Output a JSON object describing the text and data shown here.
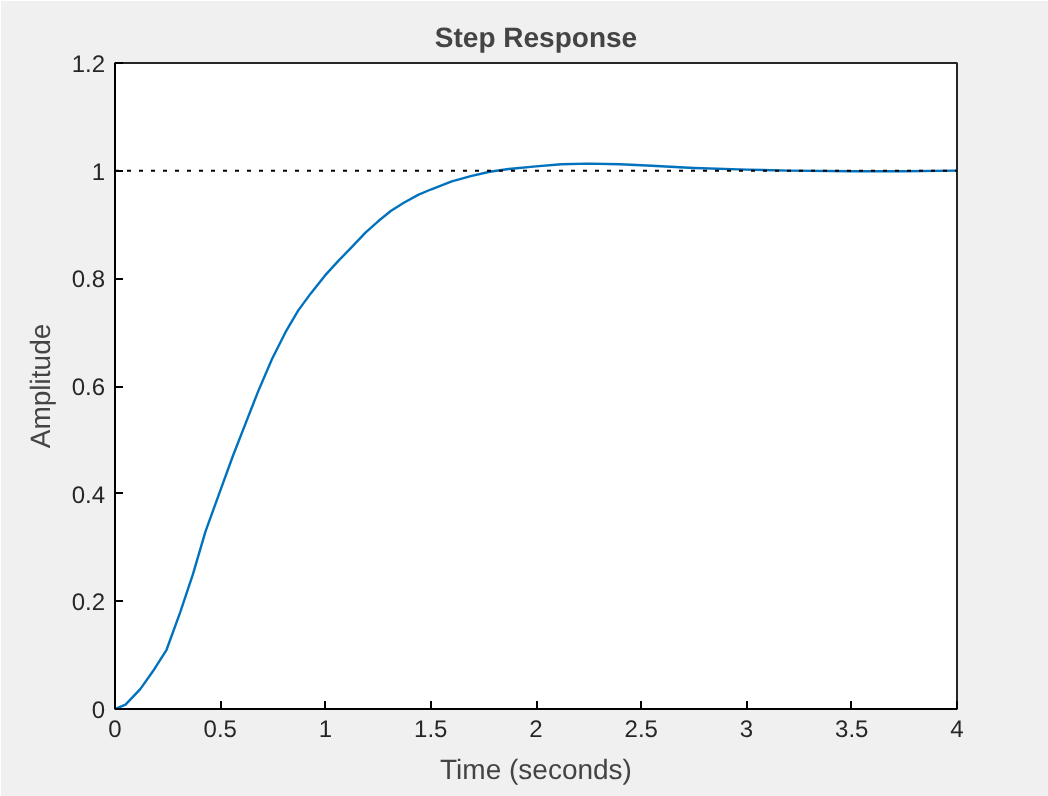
{
  "chart_data": {
    "type": "line",
    "title": "Step Response",
    "xlabel": "Time (seconds)",
    "ylabel": "Amplitude",
    "x": [
      0,
      0.05,
      0.12,
      0.18,
      0.245,
      0.31,
      0.37,
      0.43,
      0.495,
      0.56,
      0.62,
      0.68,
      0.746,
      0.81,
      0.87,
      0.93,
      0.997,
      1.06,
      1.12,
      1.19,
      1.25,
      1.31,
      1.37,
      1.44,
      1.5,
      1.6,
      1.69,
      1.78,
      1.87,
      2.0,
      2.12,
      2.25,
      2.4,
      2.55,
      2.75,
      3.0,
      3.2,
      3.5,
      3.75,
      4.0
    ],
    "series": [
      {
        "color": "#0072bd",
        "values": [
          0,
          0.008,
          0.037,
          0.07,
          0.11,
          0.18,
          0.25,
          0.33,
          0.4,
          0.47,
          0.53,
          0.59,
          0.65,
          0.7,
          0.74,
          0.772,
          0.805,
          0.832,
          0.856,
          0.885,
          0.906,
          0.925,
          0.94,
          0.955,
          0.965,
          0.98,
          0.99,
          0.998,
          1.003,
          1.008,
          1.012,
          1.013,
          1.012,
          1.009,
          1.005,
          1.002,
          1.0,
          0.999,
          0.999,
          1.0
        ]
      }
    ],
    "xlim": [
      0,
      4
    ],
    "ylim": [
      0,
      1.2
    ],
    "xticks": [
      0,
      0.5,
      1,
      1.5,
      2,
      2.5,
      3,
      3.5,
      4
    ],
    "yticks": [
      0,
      0.2,
      0.4,
      0.6,
      0.8,
      1,
      1.2
    ],
    "ref_lines": [
      {
        "axis": "y",
        "value": 1,
        "color": "#000000",
        "line_style": "dotted"
      }
    ],
    "grid": false,
    "line_style": "solid",
    "marker": "none"
  }
}
